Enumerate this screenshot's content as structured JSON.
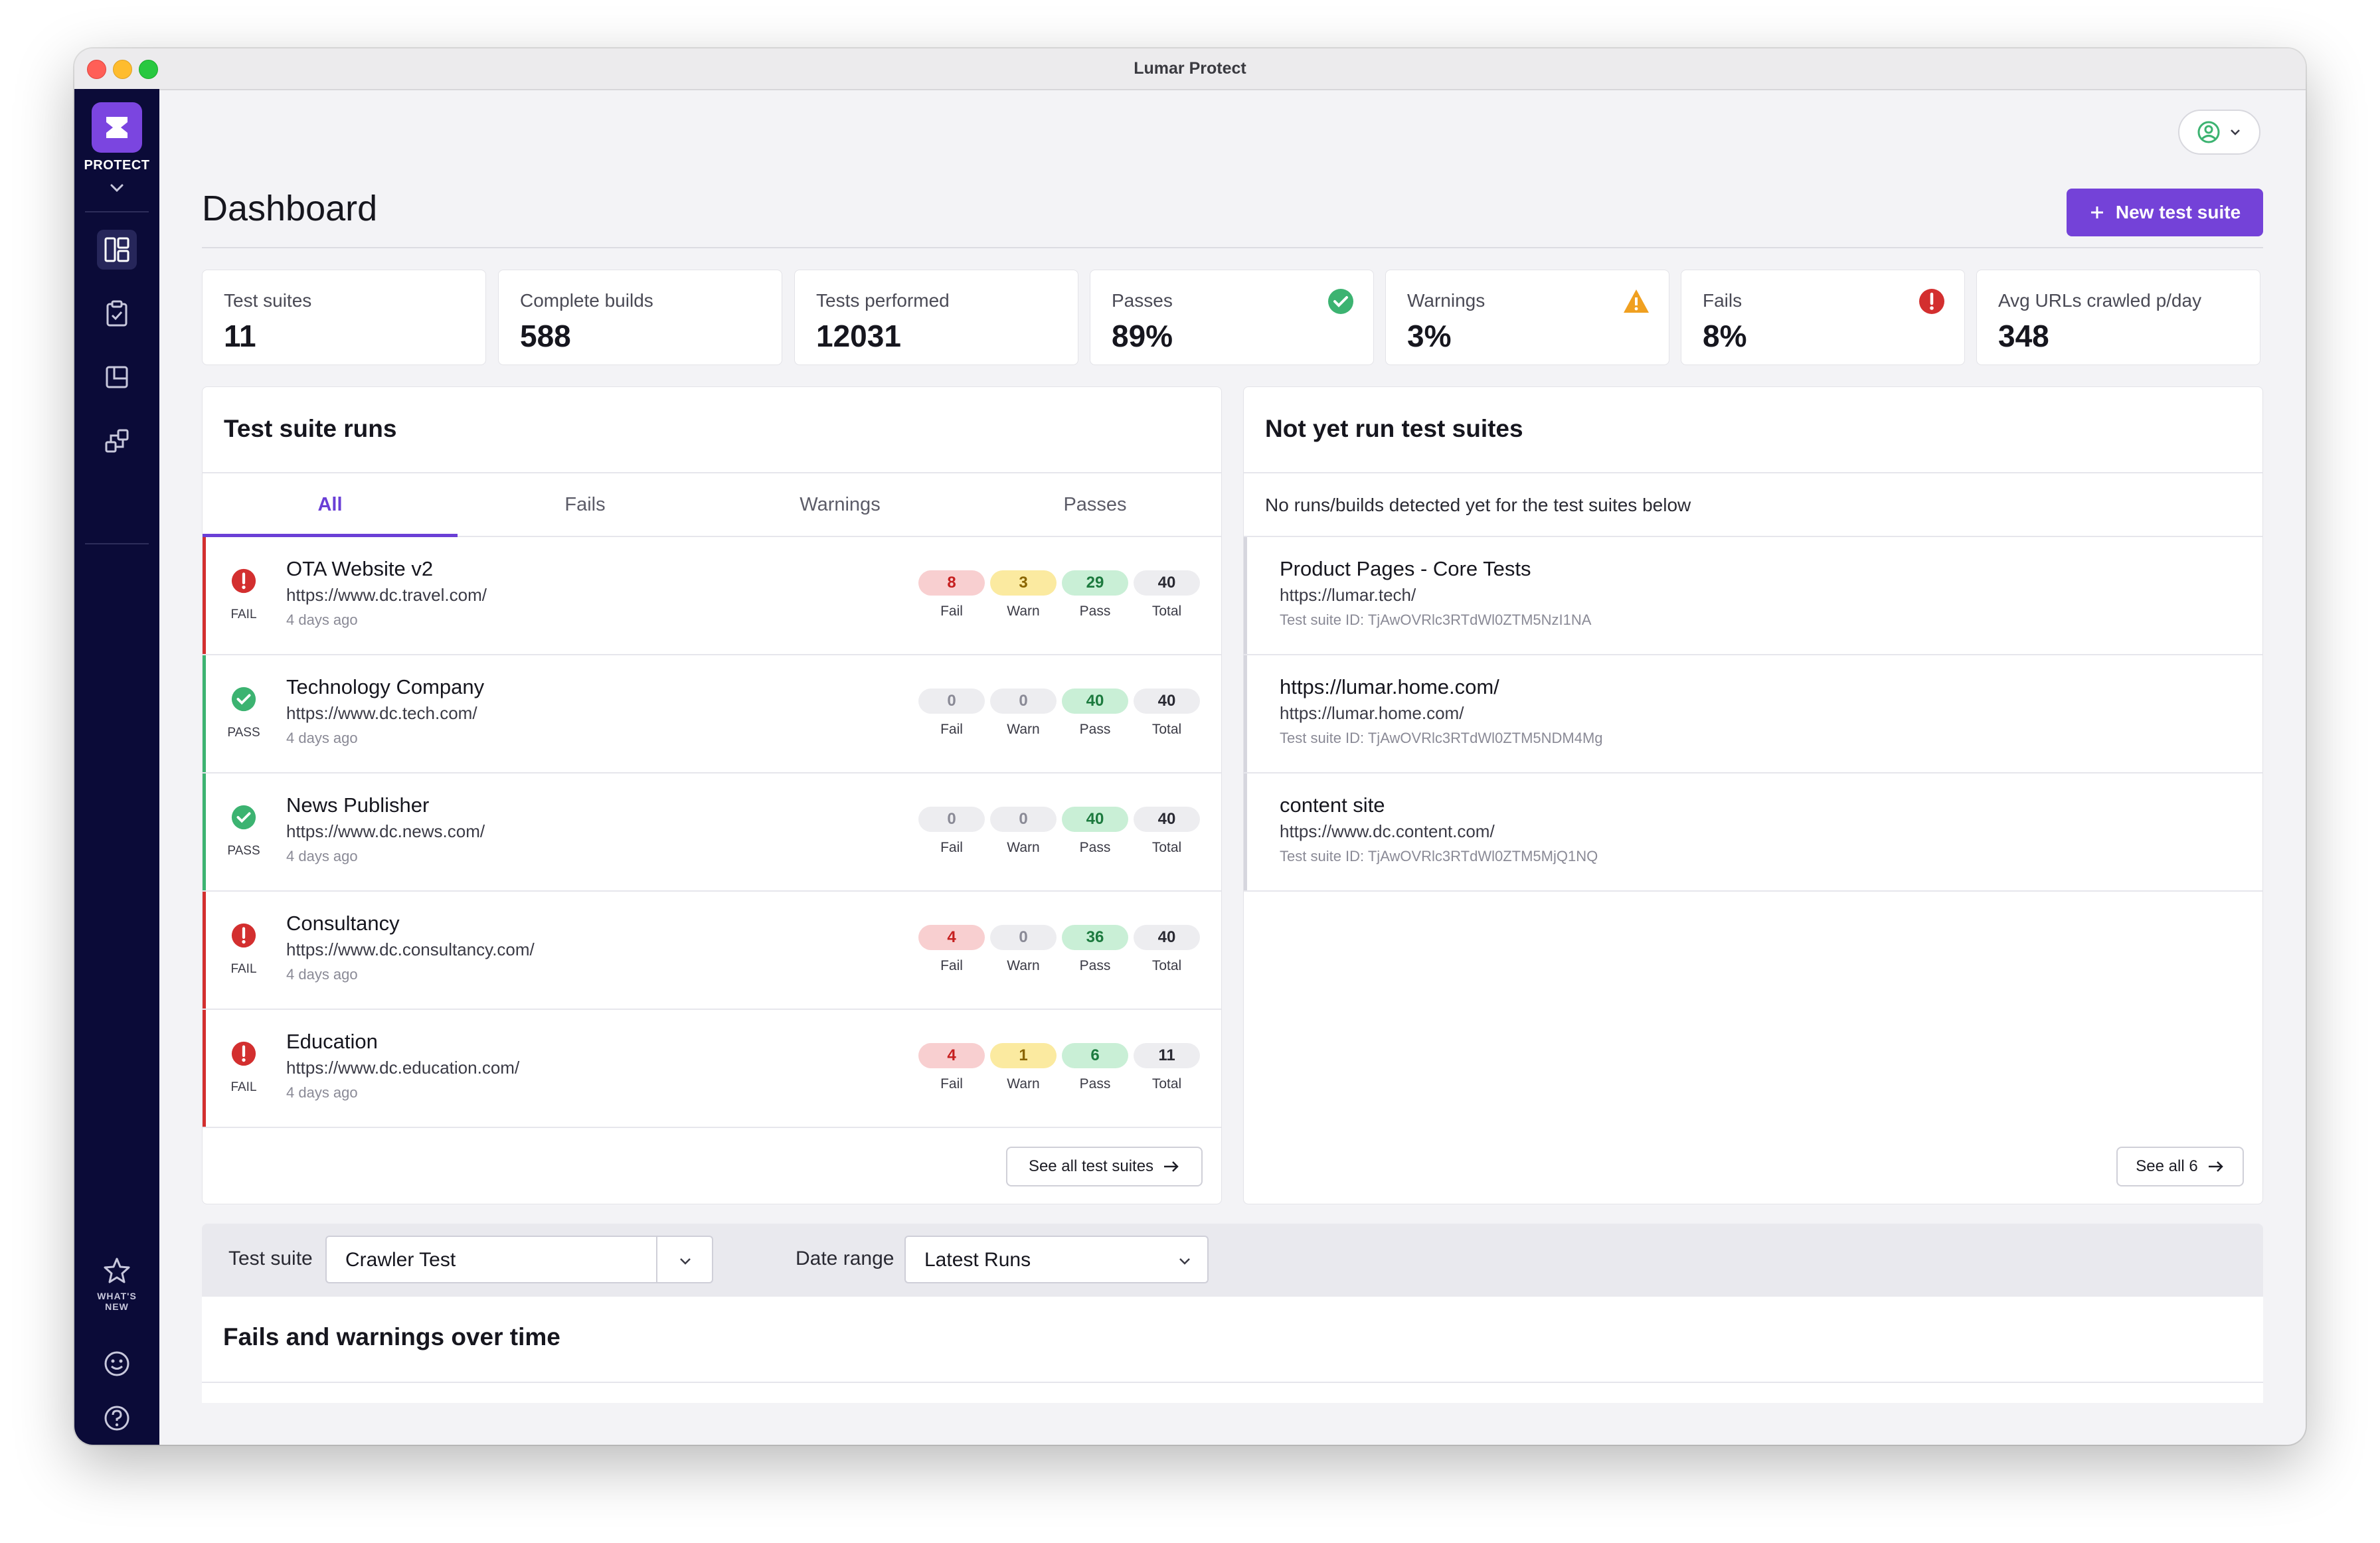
{
  "window": {
    "title": "Lumar Protect"
  },
  "sidebar": {
    "brand_label": "PROTECT",
    "whats_new_line1": "WHAT'S",
    "whats_new_line2": "NEW"
  },
  "header": {
    "title": "Dashboard",
    "new_button_label": "New test suite"
  },
  "stats": [
    {
      "label": "Test suites",
      "value": "11"
    },
    {
      "label": "Complete builds",
      "value": "588"
    },
    {
      "label": "Tests performed",
      "value": "12031"
    },
    {
      "label": "Passes",
      "value": "89%"
    },
    {
      "label": "Warnings",
      "value": "3%"
    },
    {
      "label": "Fails",
      "value": "8%"
    },
    {
      "label": "Avg URLs crawled p/day",
      "value": "348"
    }
  ],
  "runs_panel": {
    "title": "Test suite runs",
    "tabs": [
      "All",
      "Fails",
      "Warnings",
      "Passes"
    ],
    "col_labels": {
      "fail": "Fail",
      "warn": "Warn",
      "pass": "Pass",
      "total": "Total"
    },
    "rows": [
      {
        "status": "FAIL",
        "name": "OTA Website v2",
        "url": "https://www.dc.travel.com/",
        "time": "4 days ago",
        "fail": "8",
        "warn": "3",
        "pass": "29",
        "total": "40"
      },
      {
        "status": "PASS",
        "name": "Technology Company",
        "url": "https://www.dc.tech.com/",
        "time": "4 days ago",
        "fail": "0",
        "warn": "0",
        "pass": "40",
        "total": "40"
      },
      {
        "status": "PASS",
        "name": "News Publisher",
        "url": "https://www.dc.news.com/",
        "time": "4 days ago",
        "fail": "0",
        "warn": "0",
        "pass": "40",
        "total": "40"
      },
      {
        "status": "FAIL",
        "name": "Consultancy",
        "url": "https://www.dc.consultancy.com/",
        "time": "4 days ago",
        "fail": "4",
        "warn": "0",
        "pass": "36",
        "total": "40"
      },
      {
        "status": "FAIL",
        "name": "Education",
        "url": "https://www.dc.education.com/",
        "time": "4 days ago",
        "fail": "4",
        "warn": "1",
        "pass": "6",
        "total": "11"
      }
    ],
    "see_all_label": "See all test suites"
  },
  "not_run_panel": {
    "title": "Not yet run test suites",
    "subtitle": "No runs/builds detected yet for the test suites below",
    "rows": [
      {
        "name": "Product Pages - Core Tests",
        "url": "https://lumar.tech/",
        "id": "Test suite ID: TjAwOVRlc3RTdWl0ZTM5NzI1NA"
      },
      {
        "name": "https://lumar.home.com/",
        "url": "https://lumar.home.com/",
        "id": "Test suite ID: TjAwOVRlc3RTdWl0ZTM5NDM4Mg"
      },
      {
        "name": "content site",
        "url": "https://www.dc.content.com/",
        "id": "Test suite ID: TjAwOVRlc3RTdWl0ZTM5MjQ1NQ"
      }
    ],
    "see_all_label": "See all 6"
  },
  "filters": {
    "test_suite_label": "Test suite",
    "test_suite_value": "Crawler Test",
    "date_range_label": "Date range",
    "date_range_value": "Latest Runs"
  },
  "chart_section": {
    "title": "Fails and warnings over time"
  },
  "colors": {
    "accent": "#7442d8",
    "sidebar": "#0b0b38",
    "fail": "#d32f2f",
    "warn": "#f0a020",
    "pass": "#3cb371"
  }
}
